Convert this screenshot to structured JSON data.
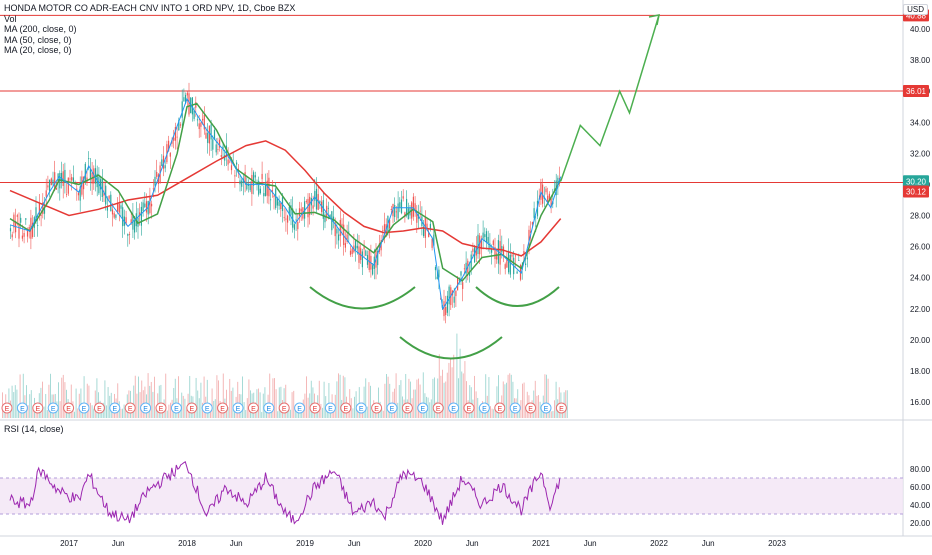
{
  "header": {
    "title": "HONDA MOTOR CO ADR-EACH CNV INTO 1 ORD NPV, 1D, Cboe BZX",
    "vol_label": "Vol",
    "ma_labels": [
      "MA (200, close, 0)",
      "MA (50, close, 0)",
      "MA (20, close, 0)"
    ],
    "currency": "USD"
  },
  "rsi": {
    "label": "RSI (14, close)",
    "ticks": [
      "80.00",
      "60.00",
      "40.00",
      "20.00"
    ],
    "band": [
      30,
      70
    ]
  },
  "chart_data": {
    "type": "line",
    "y_ticks": [
      "40.00",
      "38.00",
      "36.00",
      "34.00",
      "32.00",
      "30.00",
      "28.00",
      "26.00",
      "24.00",
      "22.00",
      "20.00",
      "18.00",
      "16.00"
    ],
    "x_ticks": [
      "2017",
      "Jun",
      "2018",
      "Jun",
      "2019",
      "Jun",
      "2020",
      "Jun",
      "2021",
      "Jun",
      "2022",
      "Jun",
      "2023"
    ],
    "ylim": [
      15.5,
      42
    ],
    "price_labels": [
      {
        "value": 40.88,
        "text": "40.88",
        "color": "#e53935"
      },
      {
        "value": 36.01,
        "text": "36.01",
        "color": "#e53935"
      },
      {
        "value": 30.2,
        "text": "30.20",
        "color": "#26a69a"
      },
      {
        "value": 30.12,
        "text": "30.12",
        "color": "#e53935"
      }
    ],
    "horizontal_lines": [
      40.88,
      36.01,
      30.12
    ],
    "projection": {
      "color": "#4caf50",
      "points": [
        [
          "2021-03",
          30.2
        ],
        [
          "2021-05",
          33.8
        ],
        [
          "2021-07",
          32.5
        ],
        [
          "2021-09",
          36.0
        ],
        [
          "2021-10",
          34.6
        ],
        [
          "2022-01",
          40.9
        ]
      ]
    },
    "earnings_marker": "E",
    "series": [
      {
        "name": "MA (200, close, 0)",
        "color": "#e53935",
        "points": [
          [
            "2016-07",
            29.6
          ],
          [
            "2016-10",
            28.8
          ],
          [
            "2017-01",
            28.0
          ],
          [
            "2017-04",
            28.4
          ],
          [
            "2017-07",
            29.0
          ],
          [
            "2017-10",
            29.3
          ],
          [
            "2018-01",
            30.4
          ],
          [
            "2018-04",
            31.5
          ],
          [
            "2018-07",
            32.5
          ],
          [
            "2018-09",
            32.8
          ],
          [
            "2018-11",
            32.2
          ],
          [
            "2019-01",
            30.9
          ],
          [
            "2019-03",
            29.4
          ],
          [
            "2019-05",
            28.2
          ],
          [
            "2019-07",
            27.3
          ],
          [
            "2019-09",
            26.9
          ],
          [
            "2019-11",
            27.0
          ],
          [
            "2020-01",
            27.2
          ],
          [
            "2020-03",
            27.0
          ],
          [
            "2020-05",
            26.2
          ],
          [
            "2020-07",
            25.9
          ],
          [
            "2020-09",
            25.8
          ],
          [
            "2020-11",
            25.4
          ],
          [
            "2021-01",
            26.3
          ],
          [
            "2021-03",
            27.8
          ]
        ]
      },
      {
        "name": "MA (50, close, 0)",
        "color": "#43a047",
        "points": [
          [
            "2016-07",
            27.8
          ],
          [
            "2016-09",
            27.0
          ],
          [
            "2016-11",
            29.0
          ],
          [
            "2016-12",
            30.3
          ],
          [
            "2017-02",
            30.0
          ],
          [
            "2017-04",
            30.6
          ],
          [
            "2017-06",
            29.6
          ],
          [
            "2017-08",
            27.5
          ],
          [
            "2017-10",
            28.1
          ],
          [
            "2017-12",
            32.0
          ],
          [
            "2018-01",
            35.0
          ],
          [
            "2018-02",
            35.2
          ],
          [
            "2018-04",
            33.5
          ],
          [
            "2018-06",
            31.0
          ],
          [
            "2018-08",
            30.1
          ],
          [
            "2018-10",
            29.9
          ],
          [
            "2018-12",
            28.1
          ],
          [
            "2019-02",
            28.2
          ],
          [
            "2019-04",
            27.7
          ],
          [
            "2019-06",
            26.5
          ],
          [
            "2019-08",
            25.6
          ],
          [
            "2019-10",
            27.4
          ],
          [
            "2019-12",
            28.4
          ],
          [
            "2020-02",
            27.6
          ],
          [
            "2020-03",
            24.6
          ],
          [
            "2020-05",
            23.8
          ],
          [
            "2020-07",
            25.3
          ],
          [
            "2020-09",
            25.5
          ],
          [
            "2020-11",
            24.6
          ],
          [
            "2021-01",
            28.0
          ],
          [
            "2021-03",
            30.3
          ]
        ]
      },
      {
        "name": "MA (20, close, 0)",
        "color": "#2196f3",
        "points": [
          [
            "2016-07",
            27.4
          ],
          [
            "2016-09",
            27.0
          ],
          [
            "2016-11",
            29.5
          ],
          [
            "2016-12",
            30.5
          ],
          [
            "2017-02",
            29.5
          ],
          [
            "2017-03",
            31.2
          ],
          [
            "2017-05",
            29.0
          ],
          [
            "2017-07",
            27.3
          ],
          [
            "2017-09",
            28.5
          ],
          [
            "2017-11",
            32.0
          ],
          [
            "2018-01",
            35.5
          ],
          [
            "2018-02",
            34.5
          ],
          [
            "2018-03",
            33.5
          ],
          [
            "2018-05",
            32.0
          ],
          [
            "2018-07",
            30.0
          ],
          [
            "2018-09",
            30.0
          ],
          [
            "2018-11",
            28.5
          ],
          [
            "2018-12",
            27.5
          ],
          [
            "2019-02",
            29.2
          ],
          [
            "2019-04",
            27.5
          ],
          [
            "2019-06",
            25.8
          ],
          [
            "2019-08",
            24.8
          ],
          [
            "2019-10",
            28.5
          ],
          [
            "2019-12",
            28.5
          ],
          [
            "2020-02",
            26.5
          ],
          [
            "2020-03",
            22.0
          ],
          [
            "2020-05",
            24.0
          ],
          [
            "2020-07",
            26.5
          ],
          [
            "2020-09",
            25.5
          ],
          [
            "2020-11",
            24.3
          ],
          [
            "2021-01",
            29.5
          ],
          [
            "2021-02",
            28.5
          ],
          [
            "2021-03",
            30.5
          ]
        ]
      }
    ],
    "rsi_series": {
      "name": "RSI (14, close)",
      "color": "#9c27b0",
      "points": [
        [
          "2016-07",
          45
        ],
        [
          "2016-09",
          40
        ],
        [
          "2016-10",
          80
        ],
        [
          "2016-12",
          55
        ],
        [
          "2017-02",
          45
        ],
        [
          "2017-03",
          74
        ],
        [
          "2017-05",
          33
        ],
        [
          "2017-07",
          22
        ],
        [
          "2017-09",
          55
        ],
        [
          "2017-11",
          72
        ],
        [
          "2018-01",
          86
        ],
        [
          "2018-03",
          28
        ],
        [
          "2018-05",
          60
        ],
        [
          "2018-07",
          40
        ],
        [
          "2018-09",
          70
        ],
        [
          "2018-11",
          30
        ],
        [
          "2018-12",
          22
        ],
        [
          "2019-02",
          60
        ],
        [
          "2019-04",
          78
        ],
        [
          "2019-06",
          30
        ],
        [
          "2019-08",
          45
        ],
        [
          "2019-09",
          25
        ],
        [
          "2019-11",
          76
        ],
        [
          "2020-01",
          65
        ],
        [
          "2020-03",
          22
        ],
        [
          "2020-05",
          70
        ],
        [
          "2020-07",
          40
        ],
        [
          "2020-09",
          62
        ],
        [
          "2020-11",
          35
        ],
        [
          "2021-01",
          78
        ],
        [
          "2021-02",
          38
        ],
        [
          "2021-03",
          72
        ]
      ]
    }
  }
}
